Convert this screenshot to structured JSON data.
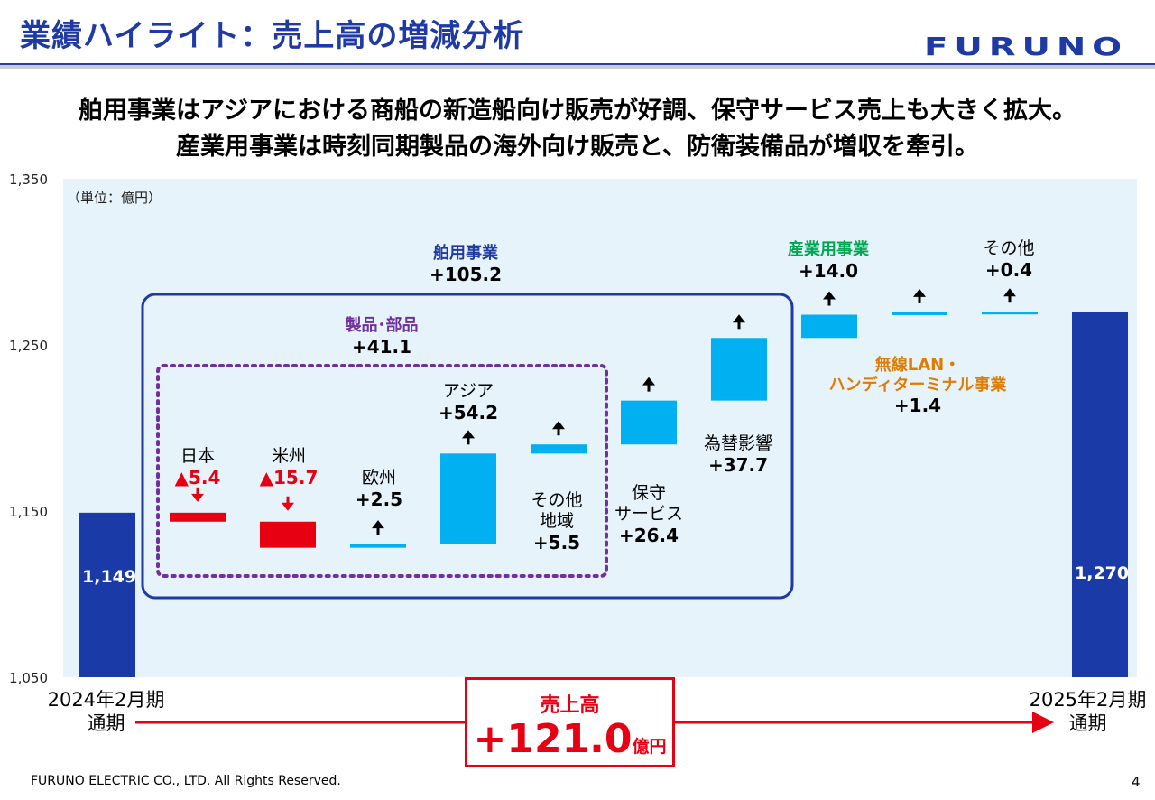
{
  "header": {
    "title": "業績ハイライト：売上高の増減分析",
    "logo_text": "FURUNO"
  },
  "headline": {
    "line1": "舶用事業はアジアにおける商船の新造船向け販売が好調、保守サービス売上も大きく拡大。",
    "line2": "産業用事業は時刻同期製品の海外向け販売と、防衛装備品が増収を牽引。"
  },
  "chart_data": {
    "type": "bar",
    "subtype": "waterfall",
    "unit_label": "（単位：億円）",
    "ylim": [
      1050,
      1350
    ],
    "yticks": [
      "1,350",
      "1,250",
      "1,150",
      "1,050"
    ],
    "ytick_values": [
      1350,
      1250,
      1150,
      1050
    ],
    "bars": [
      {
        "key": "start",
        "kind": "total",
        "value": 1149,
        "value_label": "1,149",
        "color": "#1a3aa8"
      },
      {
        "key": "japan",
        "kind": "delta",
        "name": "日本",
        "delta": -5.4,
        "delta_label": "▲5.4",
        "color": "#e60012"
      },
      {
        "key": "americas",
        "kind": "delta",
        "name": "米州",
        "delta": -15.7,
        "delta_label": "▲15.7",
        "color": "#e60012"
      },
      {
        "key": "europe",
        "kind": "delta",
        "name": "欧州",
        "delta": 2.5,
        "delta_label": "+2.5",
        "color": "#00b0f0"
      },
      {
        "key": "asia",
        "kind": "delta",
        "name": "アジア",
        "delta": 54.2,
        "delta_label": "+54.2",
        "color": "#00b0f0"
      },
      {
        "key": "other_regions",
        "kind": "delta",
        "name": "その他\n地域",
        "delta": 5.5,
        "delta_label": "+5.5",
        "color": "#00b0f0"
      },
      {
        "key": "maintenance",
        "kind": "delta",
        "name": "保守\nサービス",
        "delta": 26.4,
        "delta_label": "+26.4",
        "color": "#00b0f0"
      },
      {
        "key": "fx",
        "kind": "delta",
        "name": "為替影響",
        "delta": 37.7,
        "delta_label": "+37.7",
        "color": "#00b0f0"
      },
      {
        "key": "industrial",
        "kind": "delta",
        "name": "産業用事業",
        "delta": 14.0,
        "delta_label": "+14.0",
        "color": "#00b0f0"
      },
      {
        "key": "wireless",
        "kind": "delta",
        "name": "無線LAN・\nハンディターミナル事業",
        "delta": 1.4,
        "delta_label": "+1.4",
        "color": "#00b0f0"
      },
      {
        "key": "others",
        "kind": "delta",
        "name": "その他",
        "delta": 0.4,
        "delta_label": "+0.4",
        "color": "#00b0f0"
      },
      {
        "key": "end",
        "kind": "total",
        "value": 1270,
        "value_label": "1,270",
        "color": "#1a3aa8"
      }
    ],
    "groups": [
      {
        "key": "marine",
        "name": "舶用事業",
        "delta_label": "+105.2"
      },
      {
        "key": "products",
        "name": "製品･部品",
        "delta_label": "+41.1"
      }
    ],
    "periods": {
      "start": "2024年2月期\n通期",
      "end": "2025年2月期\n通期"
    },
    "total_change": {
      "label": "売上高",
      "value": "+121.0",
      "unit": "億円"
    }
  },
  "footer": {
    "copyright": "FURUNO ELECTRIC CO., LTD. All Rights Reserved.",
    "page": "4"
  }
}
